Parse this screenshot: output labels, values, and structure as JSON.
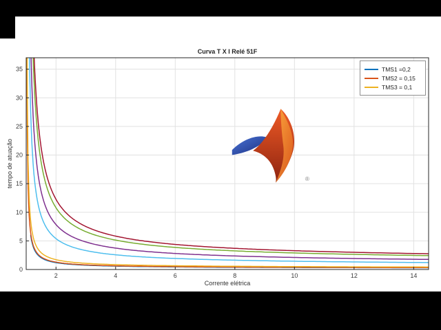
{
  "figure": {
    "title": "Curva T X I Relé 51F",
    "xlabel": "Corrente elétrica",
    "ylabel": "tempo de atuação"
  },
  "legend": {
    "entries": [
      {
        "label": "TMS1 =0,2",
        "color": "#0072BD"
      },
      {
        "label": "TMS2 = 0,15",
        "color": "#D95319"
      },
      {
        "label": "TMS3 = 0,1",
        "color": "#EDB120"
      }
    ]
  },
  "logo": {
    "name": "matlab-membrane-logo",
    "registered": "®"
  },
  "chart_data": {
    "type": "line",
    "title": "Curva T X I Relé 51F",
    "xlabel": "Corrente elétrica",
    "ylabel": "tempo de atuação",
    "xlim": [
      1,
      14.5
    ],
    "ylim": [
      0,
      37
    ],
    "xticks": [
      2,
      4,
      6,
      8,
      10,
      12,
      14
    ],
    "yticks": [
      0,
      5,
      10,
      15,
      20,
      25,
      30,
      35
    ],
    "grid": true,
    "legend_position": "top-right",
    "model": "inverse-time relay curves T = k/(x^a - 1), vertical asymptote at x = 1",
    "series": [
      {
        "name": "TMS1 =0,2",
        "color": "#0072BD",
        "k": 0.0423,
        "a": 0.05,
        "x_start": 1.15,
        "in_legend": true,
        "y_at_14": 0.3
      },
      {
        "name": "TMS2 = 0,15",
        "color": "#D95319",
        "k": 0.018,
        "a": 0.02,
        "x_start": 1.001,
        "in_legend": true,
        "y_at_14": 0.33
      },
      {
        "name": "TMS3 = 0,1",
        "color": "#EDB120",
        "k": 0.024,
        "a": 0.02,
        "x_start": 1.001,
        "in_legend": true,
        "y_at_14": 0.44
      },
      {
        "name": "curve-4",
        "color": "#7E2F8E",
        "k": 0.8,
        "a": 0.14,
        "x_start": 1.001,
        "in_legend": false,
        "y_at_14": 1.79
      },
      {
        "name": "curve-5",
        "color": "#77AC30",
        "k": 1.1,
        "a": 0.14,
        "x_start": 1.001,
        "in_legend": false,
        "y_at_14": 2.46
      },
      {
        "name": "curve-6",
        "color": "#4DBEEE",
        "k": 0.55,
        "a": 0.14,
        "x_start": 1.001,
        "in_legend": false,
        "y_at_14": 1.23
      },
      {
        "name": "curve-7",
        "color": "#A2142F",
        "k": 1.25,
        "a": 0.14,
        "x_start": 1.001,
        "in_legend": false,
        "y_at_14": 2.8
      }
    ]
  }
}
